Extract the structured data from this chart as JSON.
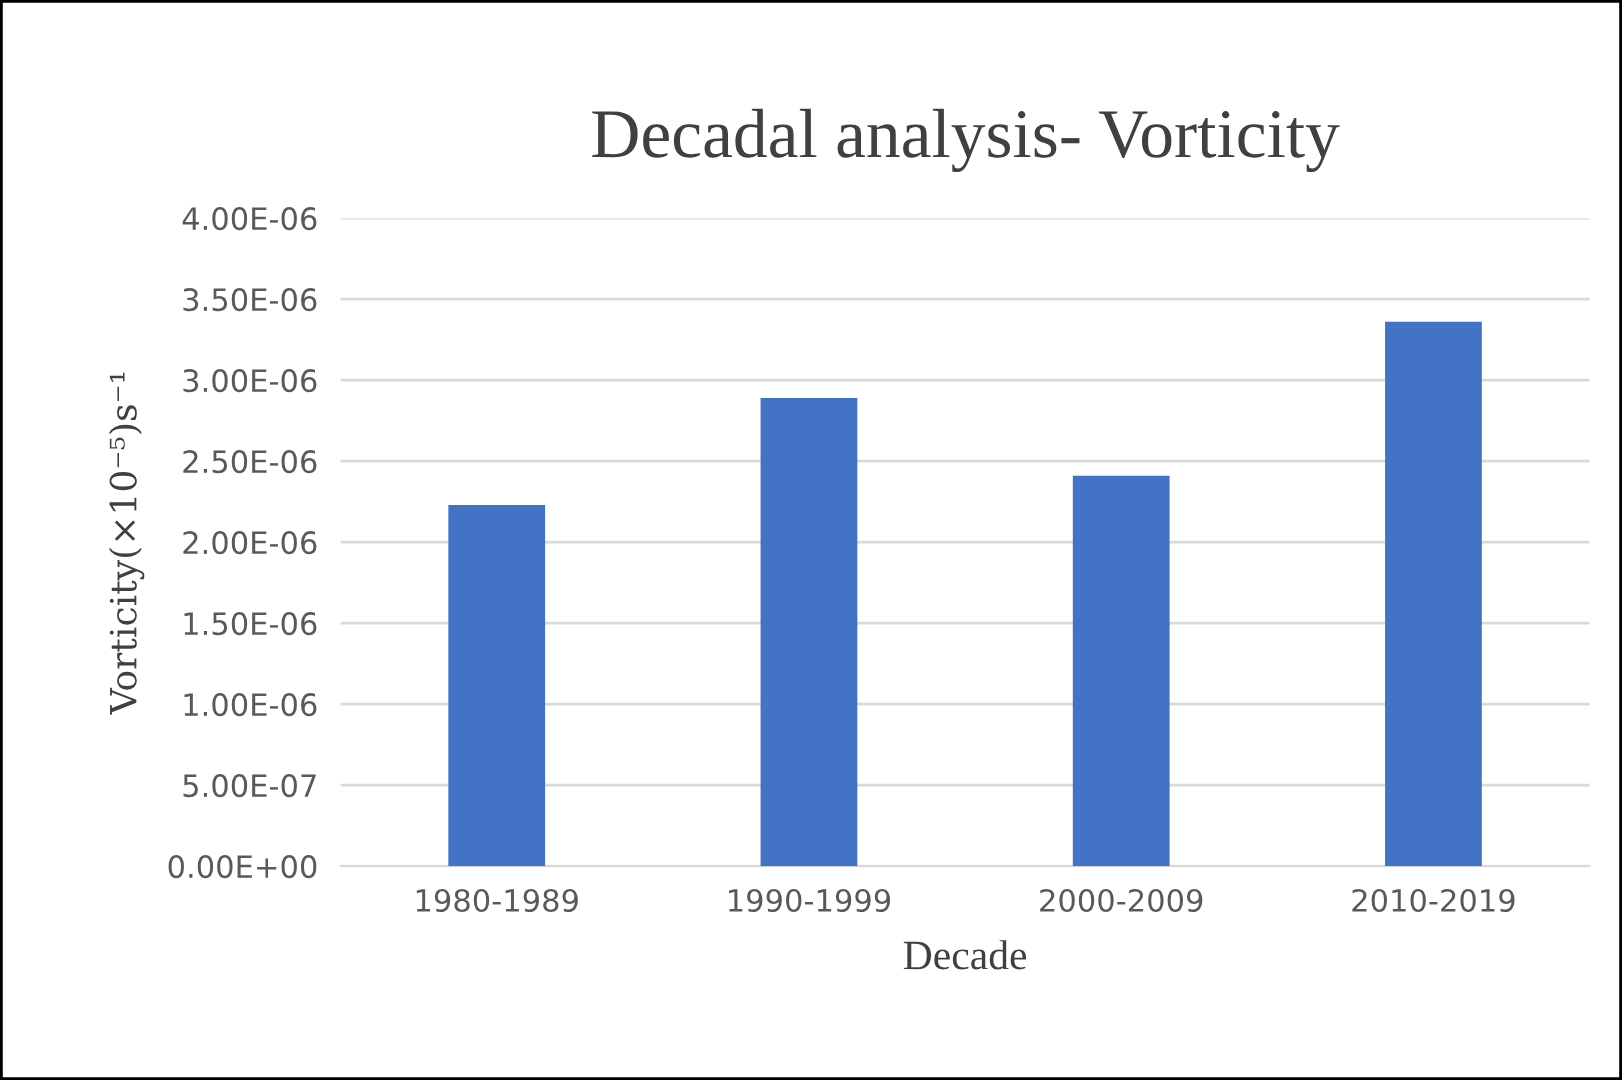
{
  "chart_data": {
    "type": "bar",
    "title": "Decadal analysis- Vorticity",
    "xlabel": "Decade",
    "ylabel": "Vorticity(×10⁻⁵)s⁻¹",
    "categories": [
      "1980-1989",
      "1990-1999",
      "2000-2009",
      "2010-2019"
    ],
    "values": [
      2.23e-06,
      2.89e-06,
      2.41e-06,
      3.36e-06
    ],
    "color": "#4472c4",
    "ylim": [
      0,
      4e-06
    ],
    "yticks": [
      {
        "value": 0,
        "label": "0.00E+00"
      },
      {
        "value": 5e-07,
        "label": "5.00E-07"
      },
      {
        "value": 1e-06,
        "label": "1.00E-06"
      },
      {
        "value": 1.5e-06,
        "label": "1.50E-06"
      },
      {
        "value": 2e-06,
        "label": "2.00E-06"
      },
      {
        "value": 2.5e-06,
        "label": "2.50E-06"
      },
      {
        "value": 3e-06,
        "label": "3.00E-06"
      },
      {
        "value": 3.5e-06,
        "label": "3.50E-06"
      },
      {
        "value": 4e-06,
        "label": "4.00E-06"
      }
    ],
    "grid": "y"
  }
}
